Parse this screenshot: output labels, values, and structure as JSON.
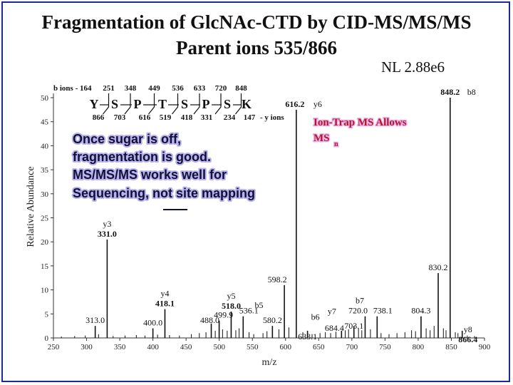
{
  "slide": {
    "title_line1": "Fragmentation of GlcNAc-CTD by CID-MS/MS/MS",
    "title_line2": "Parent ions 535/866",
    "nl_label": "NL 2.88e6"
  },
  "sequence": {
    "b_ions_label": "b ions - 164",
    "b_ions": [
      "251",
      "348",
      "449",
      "536",
      "633",
      "720",
      "848"
    ],
    "residues": [
      "Y",
      "S",
      "P",
      "T",
      "S",
      "P",
      "S",
      "K"
    ],
    "y_ions": [
      "866",
      "703",
      "616",
      "519",
      "418",
      "331",
      "234",
      "147"
    ],
    "y_ions_suffix": "- y ions"
  },
  "notes": {
    "callout_lines": [
      "Once sugar is off,",
      " fragmentation is good.",
      "MS/MS/MS works well for",
      "Sequencing, not site mapping"
    ],
    "underlined_word": "not",
    "ion_trap_line1": "Ion-Trap MS Allows",
    "ion_trap_line2": "MS",
    "ion_trap_subscript": "n"
  },
  "chart_data": {
    "type": "bar",
    "xlabel": "m/z",
    "ylabel": "Relative Abundance",
    "xlim": [
      250,
      900
    ],
    "ylim": [
      0,
      50
    ],
    "x_ticks": [
      250,
      300,
      350,
      400,
      450,
      500,
      550,
      600,
      650,
      700,
      750,
      800,
      850,
      900
    ],
    "y_ticks": [
      0,
      5,
      10,
      15,
      20,
      25,
      30,
      35,
      40,
      45,
      50
    ],
    "color": "#111111",
    "peaks": [
      {
        "mz": 313.0,
        "intensity": 2.5,
        "label": "313.0"
      },
      {
        "mz": 331.0,
        "intensity": 20.5,
        "label": "331.0",
        "ion": "y3"
      },
      {
        "mz": 400.0,
        "intensity": 2.0,
        "label": "400.0"
      },
      {
        "mz": 418.1,
        "intensity": 6.0,
        "label": "418.1",
        "ion": "y4"
      },
      {
        "mz": 488.0,
        "intensity": 3.0,
        "label": "488.0"
      },
      {
        "mz": 499.9,
        "intensity": 3.6,
        "label": "499.9"
      },
      {
        "mz": 518.0,
        "intensity": 5.5,
        "label": "518.0",
        "ion": "y5"
      },
      {
        "mz": 536.1,
        "intensity": 4.5,
        "label": "536.1"
      },
      {
        "mz": 580.2,
        "intensity": 2.5,
        "label": "580.2"
      },
      {
        "mz": 598.2,
        "intensity": 11.0,
        "label": "598.2"
      },
      {
        "mz": 616.2,
        "intensity": 47.5,
        "label": "616.2",
        "ion": "y6"
      },
      {
        "mz": 633.1,
        "intensity": 1.5,
        "label": "633.1"
      },
      {
        "mz": 684.4,
        "intensity": 1.5,
        "label": "684.4"
      },
      {
        "mz": 703.1,
        "intensity": 2.5,
        "label": "703.1"
      },
      {
        "mz": 720.0,
        "intensity": 4.5,
        "label": "720.0"
      },
      {
        "mz": 738.1,
        "intensity": 4.5,
        "label": "738.1"
      },
      {
        "mz": 804.3,
        "intensity": 4.5,
        "label": "804.3"
      },
      {
        "mz": 830.2,
        "intensity": 13.5,
        "label": "830.2"
      },
      {
        "mz": 848.2,
        "intensity": 50.0,
        "label": "848.2",
        "ion": "b8"
      },
      {
        "mz": 866.4,
        "intensity": 1.5,
        "label": "866.4",
        "ion": "y8"
      }
    ],
    "extra_ion_labels": [
      {
        "mz": 560,
        "intensity": 6.2,
        "text": "b5"
      },
      {
        "mz": 645,
        "intensity": 3.8,
        "text": "b6"
      },
      {
        "mz": 670,
        "intensity": 5.0,
        "text": "y7"
      },
      {
        "mz": 712,
        "intensity": 7.2,
        "text": "b7"
      }
    ],
    "minor_peaks": [
      {
        "mz": 262,
        "intensity": 0.3
      },
      {
        "mz": 282,
        "intensity": 0.4
      },
      {
        "mz": 298,
        "intensity": 0.5
      },
      {
        "mz": 318,
        "intensity": 0.8
      },
      {
        "mz": 340,
        "intensity": 0.4
      },
      {
        "mz": 358,
        "intensity": 0.5
      },
      {
        "mz": 375,
        "intensity": 0.6
      },
      {
        "mz": 388,
        "intensity": 0.5
      },
      {
        "mz": 407,
        "intensity": 0.7
      },
      {
        "mz": 425,
        "intensity": 0.6
      },
      {
        "mz": 440,
        "intensity": 0.5
      },
      {
        "mz": 458,
        "intensity": 0.8
      },
      {
        "mz": 470,
        "intensity": 1.0
      },
      {
        "mz": 480,
        "intensity": 1.2
      },
      {
        "mz": 494,
        "intensity": 1.5
      },
      {
        "mz": 505,
        "intensity": 1.8
      },
      {
        "mz": 512,
        "intensity": 1.5
      },
      {
        "mz": 525,
        "intensity": 1.6
      },
      {
        "mz": 530,
        "intensity": 2.0
      },
      {
        "mz": 545,
        "intensity": 1.2
      },
      {
        "mz": 552,
        "intensity": 0.8
      },
      {
        "mz": 566,
        "intensity": 1.0
      },
      {
        "mz": 572,
        "intensity": 1.4
      },
      {
        "mz": 590,
        "intensity": 1.8
      },
      {
        "mz": 605,
        "intensity": 2.2
      },
      {
        "mz": 626,
        "intensity": 1.2
      },
      {
        "mz": 640,
        "intensity": 0.8
      },
      {
        "mz": 652,
        "intensity": 1.0
      },
      {
        "mz": 660,
        "intensity": 1.2
      },
      {
        "mz": 668,
        "intensity": 1.0
      },
      {
        "mz": 676,
        "intensity": 1.3
      },
      {
        "mz": 690,
        "intensity": 1.6
      },
      {
        "mz": 695,
        "intensity": 1.8
      },
      {
        "mz": 710,
        "intensity": 2.0
      },
      {
        "mz": 715,
        "intensity": 1.6
      },
      {
        "mz": 728,
        "intensity": 1.8
      },
      {
        "mz": 744,
        "intensity": 1.0
      },
      {
        "mz": 756,
        "intensity": 0.8
      },
      {
        "mz": 768,
        "intensity": 1.0
      },
      {
        "mz": 780,
        "intensity": 1.2
      },
      {
        "mz": 790,
        "intensity": 1.6
      },
      {
        "mz": 796,
        "intensity": 1.4
      },
      {
        "mz": 812,
        "intensity": 2.0
      },
      {
        "mz": 818,
        "intensity": 1.6
      },
      {
        "mz": 824,
        "intensity": 2.5
      },
      {
        "mz": 838,
        "intensity": 2.0
      },
      {
        "mz": 842,
        "intensity": 1.6
      },
      {
        "mz": 856,
        "intensity": 1.2
      },
      {
        "mz": 860,
        "intensity": 1.0
      },
      {
        "mz": 874,
        "intensity": 0.5
      },
      {
        "mz": 885,
        "intensity": 0.4
      }
    ]
  }
}
